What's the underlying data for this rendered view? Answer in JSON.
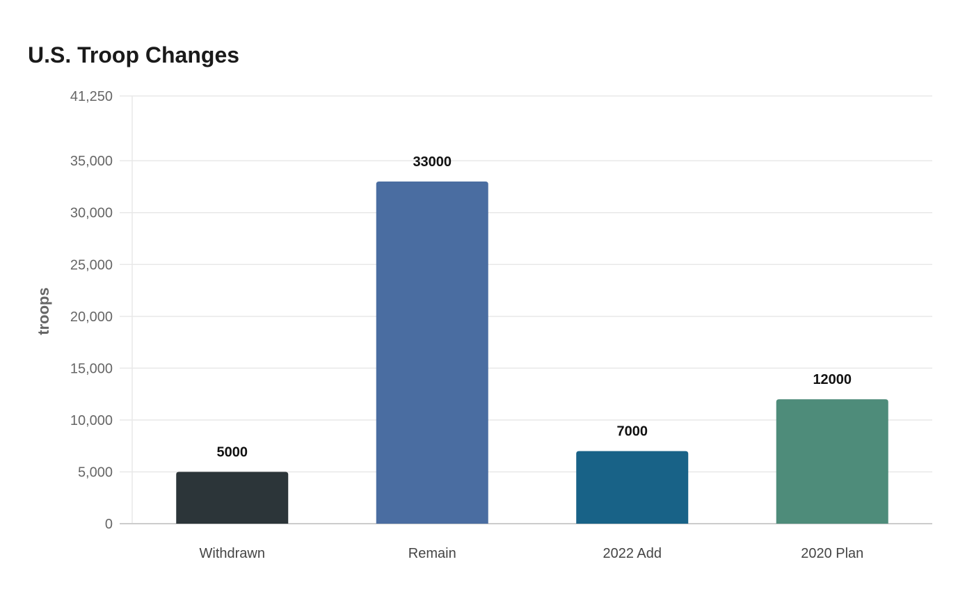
{
  "chart_data": {
    "type": "bar",
    "title": "U.S. Troop Changes",
    "xlabel": "",
    "ylabel": "troops",
    "categories": [
      "Withdrawn",
      "Remain",
      "2022 Add",
      "2020 Plan"
    ],
    "values": [
      5000,
      33000,
      7000,
      12000
    ],
    "data_labels": [
      "5000",
      "33000",
      "7000",
      "12000"
    ],
    "colors": [
      "#2c3539",
      "#4a6da1",
      "#186287",
      "#4e8c7a"
    ],
    "ylim": [
      0,
      41250
    ],
    "y_ticks": [
      0,
      5000,
      10000,
      15000,
      20000,
      25000,
      30000,
      35000,
      41250
    ],
    "y_tick_labels": [
      "0",
      "5,000",
      "10,000",
      "15,000",
      "20,000",
      "25,000",
      "30,000",
      "35,000",
      "41,250"
    ],
    "grid": true,
    "legend": "none"
  },
  "style": {
    "grid_color": "#e8e8e8",
    "axis_color": "#cccccc",
    "tick_text_color": "#666666",
    "category_text_color": "#444444",
    "value_label_color": "#111111",
    "ylabel_color": "#666666"
  }
}
